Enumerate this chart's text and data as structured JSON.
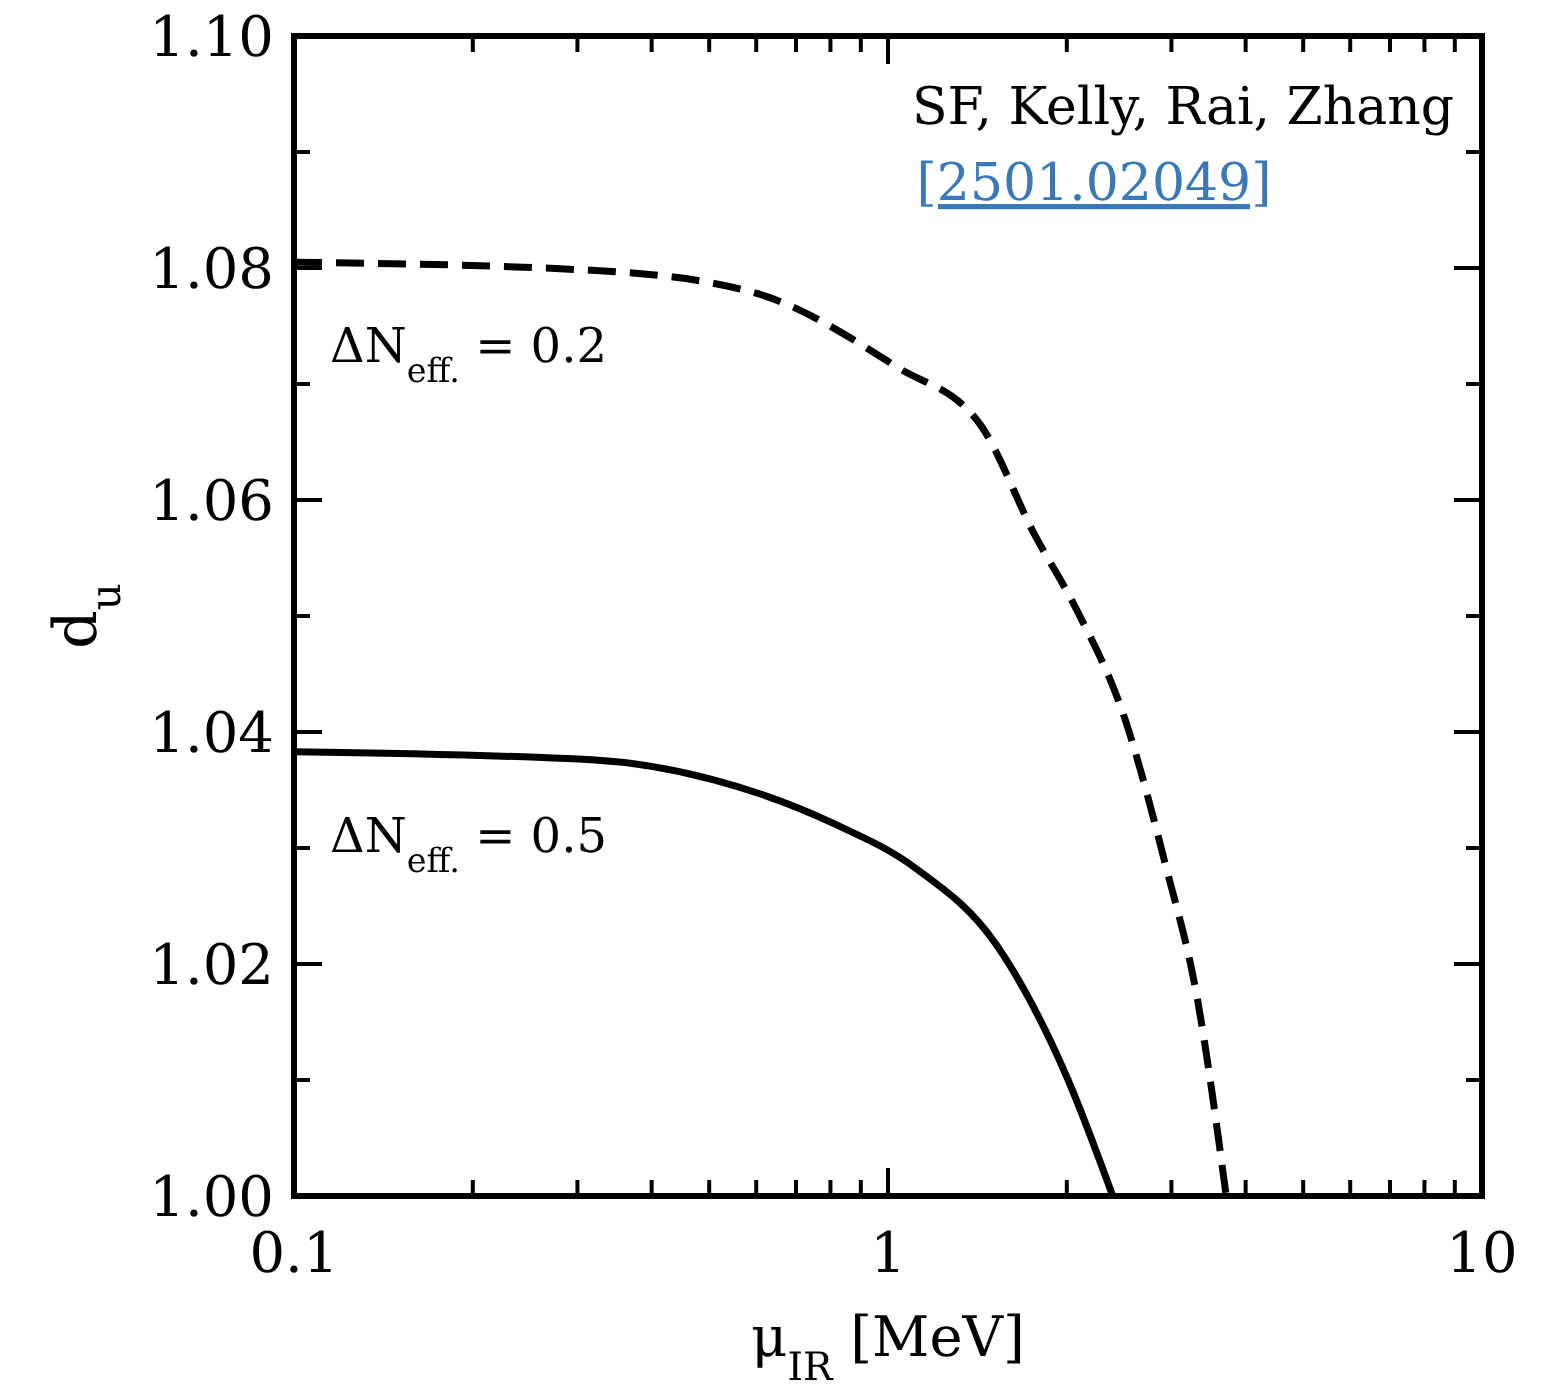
{
  "chart_data": {
    "type": "line",
    "xlabel": "μ$_{IR}$ [MeV]",
    "ylabel": "d$_{u}$",
    "log": "x",
    "xlim": [
      0.1,
      10
    ],
    "ylim": [
      1.0,
      1.1
    ],
    "xticks": [
      0.1,
      {
        "value": 0.2,
        "label": null
      },
      {
        "value": 0.3,
        "label": null
      },
      {
        "value": 0.4,
        "label": null
      },
      {
        "value": 0.5,
        "label": null
      },
      {
        "value": 0.6,
        "label": null
      },
      {
        "value": 0.7,
        "label": null
      },
      {
        "value": 0.8,
        "label": null
      },
      {
        "value": 0.9,
        "label": null
      },
      1,
      {
        "value": 2,
        "label": null
      },
      {
        "value": 3,
        "label": null
      },
      {
        "value": 4,
        "label": null
      },
      {
        "value": 5,
        "label": null
      },
      {
        "value": 6,
        "label": null
      },
      {
        "value": 7,
        "label": null
      },
      {
        "value": 8,
        "label": null
      },
      {
        "value": 9,
        "label": null
      },
      10
    ],
    "yticks": [
      {
        "value": 1.0,
        "label": "1.00"
      },
      {
        "value": 1.01,
        "label": null
      },
      {
        "value": 1.02,
        "label": "1.02"
      },
      {
        "value": 1.03,
        "label": null
      },
      {
        "value": 1.04,
        "label": "1.04"
      },
      {
        "value": 1.05,
        "label": null
      },
      {
        "value": 1.06,
        "label": "1.06"
      },
      {
        "value": 1.07,
        "label": null
      },
      {
        "value": 1.08,
        "label": "1.08"
      },
      {
        "value": 1.09,
        "label": null
      },
      {
        "value": 1.1,
        "label": "1.10"
      }
    ],
    "grid": false,
    "marker": "none",
    "series": [
      {
        "name": "ΔN$_{eff.}$ = 0.2",
        "color": "#000000",
        "line_style": "dashed",
        "x": [
          0.1,
          0.317,
          0.593,
          1.04,
          1.43,
          1.77,
          2.07,
          2.51,
          2.93,
          3.32,
          3.71
        ],
        "values": [
          1.0805,
          1.0798,
          1.0779,
          1.0714,
          1.0665,
          1.0569,
          1.0507,
          1.041,
          1.0286,
          1.0169,
          1.0
        ]
      },
      {
        "name": "ΔN$_{eff.}$ = 0.5",
        "color": "#000000",
        "line_style": "solid",
        "x": [
          0.1,
          0.317,
          0.507,
          0.811,
          1.11,
          1.52,
          2.01,
          2.39
        ],
        "values": [
          1.0383,
          1.0376,
          1.0359,
          1.0321,
          1.0283,
          1.0217,
          1.01,
          1.0
        ]
      }
    ],
    "annotations": [
      "SF, Kelly, Rai, Zhang",
      "[2501.02049]"
    ]
  }
}
